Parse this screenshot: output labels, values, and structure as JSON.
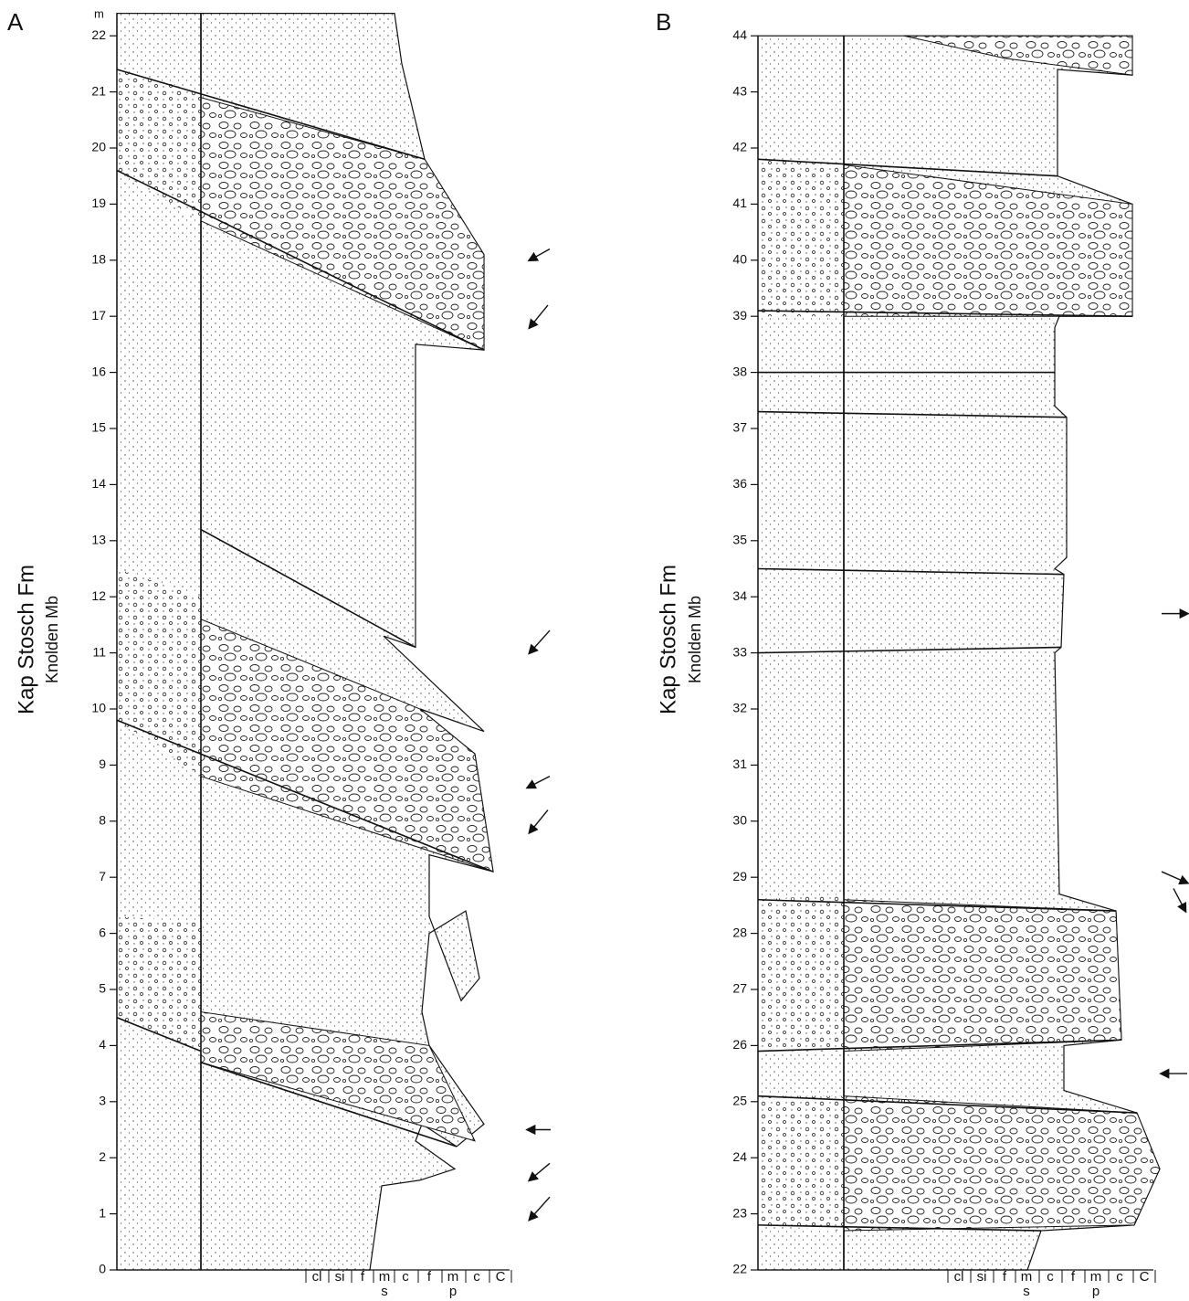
{
  "panels": [
    {
      "label": "A",
      "unit": "m",
      "formation": "Kap Stosch Fm",
      "member": "Knolden Mb",
      "yticks": [
        0,
        1,
        2,
        3,
        4,
        5,
        6,
        7,
        8,
        9,
        10,
        11,
        12,
        13,
        14,
        15,
        16,
        17,
        18,
        19,
        20,
        21,
        22
      ],
      "grain_size": {
        "classes": [
          "cl",
          "si",
          "f",
          "m",
          "c",
          "f",
          "m",
          "c",
          "C"
        ],
        "groups": [
          "s",
          "p"
        ]
      }
    },
    {
      "label": "B",
      "formation": "Kap Stosch Fm",
      "member": "Knolden Mb",
      "yticks": [
        22,
        23,
        24,
        25,
        26,
        27,
        28,
        29,
        30,
        31,
        32,
        33,
        34,
        35,
        36,
        37,
        38,
        39,
        40,
        41,
        42,
        43,
        44
      ],
      "grain_size": {
        "classes": [
          "cl",
          "si",
          "f",
          "m",
          "c",
          "f",
          "m",
          "c",
          "C"
        ],
        "groups": [
          "s",
          "p"
        ]
      }
    }
  ]
}
